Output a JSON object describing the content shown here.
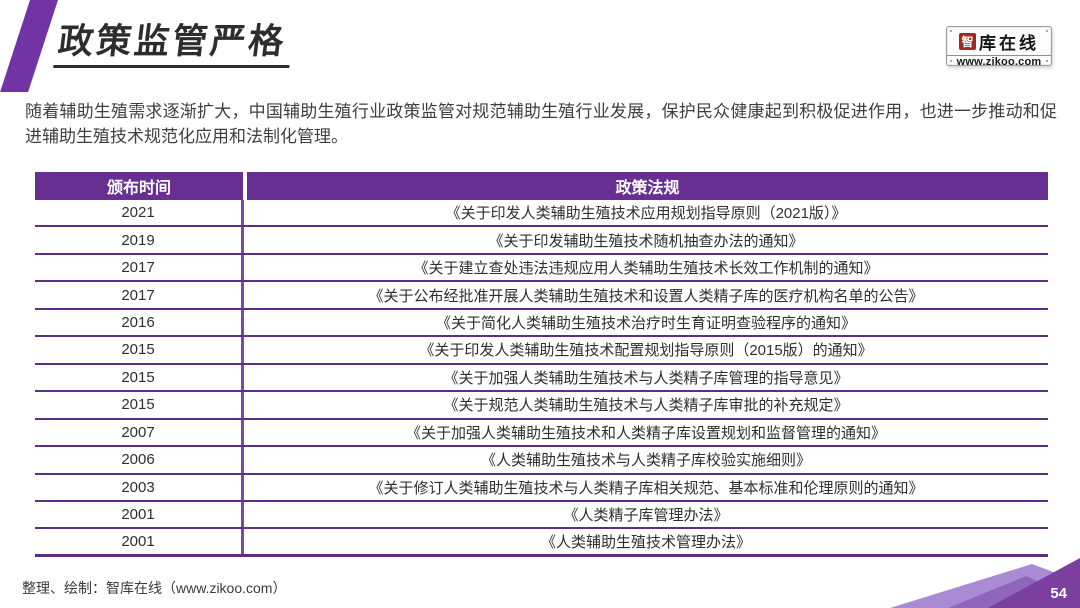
{
  "page": {
    "title": "政策监管严格",
    "page_number": "54",
    "footer_credit": "整理、绘制：智库在线（www.zikoo.com）"
  },
  "logo": {
    "brand_first_char": "智",
    "brand_rest": "库在线",
    "url": "www.zikoo.com"
  },
  "intro": "随着辅助生殖需求逐渐扩大，中国辅助生殖行业政策监管对规范辅助生殖行业发展，保护民众健康起到积极促进作用，也进一步推动和促进辅助生殖技术规范化应用和法制化管理。",
  "table": {
    "headers": [
      "颁布时间",
      "政策法规"
    ],
    "rows": [
      [
        "2021",
        "《关于印发人类辅助生殖技术应用规划指导原则（2021版）》"
      ],
      [
        "2019",
        "《关于印发辅助生殖技术随机抽查办法的通知》"
      ],
      [
        "2017",
        "《关于建立查处违法违规应用人类辅助生殖技术长效工作机制的通知》"
      ],
      [
        "2017",
        "《关于公布经批准开展人类辅助生殖技术和设置人类精子库的医疗机构名单的公告》"
      ],
      [
        "2016",
        "《关于简化人类辅助生殖技术治疗时生育证明查验程序的通知》"
      ],
      [
        "2015",
        "《关于印发人类辅助生殖技术配置规划指导原则（2015版）的通知》"
      ],
      [
        "2015",
        "《关于加强人类辅助生殖技术与人类精子库管理的指导意见》"
      ],
      [
        "2015",
        "《关于规范人类辅助生殖技术与人类精子库审批的补充规定》"
      ],
      [
        "2007",
        "《关于加强人类辅助生殖技术和人类精子库设置规划和监督管理的通知》"
      ],
      [
        "2006",
        "《人类辅助生殖技术与人类精子库校验实施细则》"
      ],
      [
        "2003",
        "《关于修订人类辅助生殖技术与人类精子库相关规范、基本标准和伦理原则的通知》"
      ],
      [
        "2001",
        "《人类精子库管理办法》"
      ],
      [
        "2001",
        "《人类辅助生殖技术管理办法》"
      ]
    ]
  },
  "colors": {
    "header_purple": "#682f92",
    "accent_purple": "#7233a4",
    "row_line_purple": "#5c2e86",
    "column_divider_purple": "#7a4aa8",
    "deco_light_purple": "#a98bd3",
    "deco_mid_purple": "#9066bd",
    "deco_dark_purple": "#7b3fa0",
    "logo_red": "#9e2b1e"
  }
}
